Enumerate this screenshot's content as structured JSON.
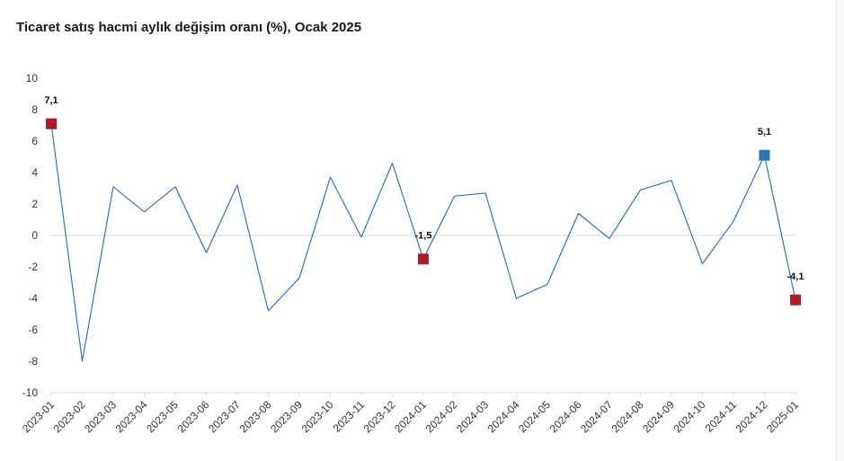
{
  "chart_data": {
    "type": "line",
    "title": "Ticaret satış hacmi aylık değişim oranı (%), Ocak 2025",
    "xlabel": "",
    "ylabel": "",
    "ylim": [
      -10,
      10
    ],
    "yticks": [
      10,
      8,
      6,
      4,
      2,
      0,
      -2,
      -4,
      -6,
      -8,
      -10
    ],
    "grid": false,
    "legend": "none",
    "categories": [
      "2023-01",
      "2023-02",
      "2023-03",
      "2023-04",
      "2023-05",
      "2023-06",
      "2023-07",
      "2023-08",
      "2023-09",
      "2023-10",
      "2023-11",
      "2023-12",
      "2024-01",
      "2024-02",
      "2024-03",
      "2024-04",
      "2024-05",
      "2024-06",
      "2024-07",
      "2024-08",
      "2024-09",
      "2024-10",
      "2024-11",
      "2024-12",
      "2025-01"
    ],
    "series": [
      {
        "color": "#2e75b6",
        "values": [
          7.1,
          -8.0,
          3.1,
          1.5,
          3.1,
          -1.1,
          3.2,
          -4.8,
          -2.7,
          3.7,
          -0.1,
          4.6,
          -1.5,
          2.5,
          2.7,
          -4.0,
          -3.1,
          1.4,
          -0.2,
          2.9,
          3.5,
          -1.8,
          0.9,
          5.1,
          -4.1
        ]
      }
    ],
    "highlights": [
      {
        "index": 0,
        "label": "7,1",
        "color": "#b01c24"
      },
      {
        "index": 12,
        "label": "-1,5",
        "color": "#b01c24"
      },
      {
        "index": 23,
        "label": "5,1",
        "color": "#2e75b6"
      },
      {
        "index": 24,
        "label": "-4,1",
        "color": "#b01c24"
      }
    ]
  }
}
